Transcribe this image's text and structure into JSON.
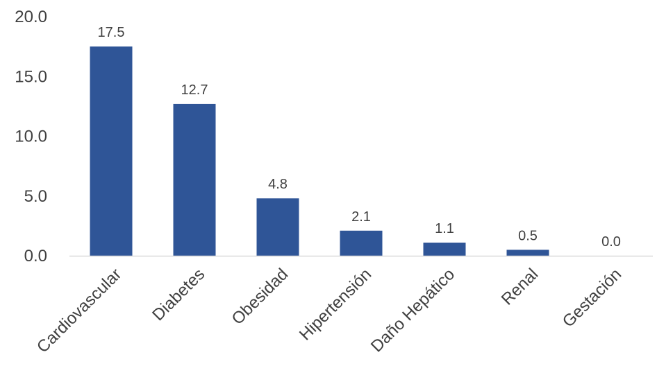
{
  "chart_data": {
    "type": "bar",
    "title": "",
    "xlabel": "",
    "ylabel": "",
    "categories": [
      "Cardiovascular",
      "Diabetes",
      "Obesidad",
      "Hipertensión",
      "Daño Hepático",
      "Renal",
      "Gestación"
    ],
    "values": [
      17.5,
      12.7,
      4.8,
      2.1,
      1.1,
      0.5,
      0.0
    ],
    "data_labels": [
      "17.5",
      "12.7",
      "4.8",
      "2.1",
      "1.1",
      "0.5",
      "0.0"
    ],
    "yticks": [
      0,
      5,
      10,
      15,
      20
    ],
    "ytick_labels": [
      "0.0",
      "5.0",
      "10.0",
      "15.0",
      "20.0"
    ],
    "ylim": [
      0,
      20
    ],
    "grid": false,
    "legend": "none",
    "colors": {
      "bar": "#2F5597",
      "axis": "#D9D9D9",
      "text": "#404040"
    }
  }
}
